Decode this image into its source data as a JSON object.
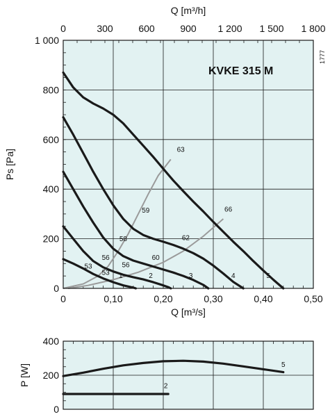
{
  "chart_data": [
    {
      "type": "line",
      "title": "KVKE 315 M",
      "code": "1777",
      "xlabel": "Q [m³/s]",
      "x2label": "Q [m³/h]",
      "ylabel": "Ps [Pa]",
      "xlim": [
        0,
        0.5
      ],
      "x2lim": [
        0,
        1800
      ],
      "ylim": [
        0,
        1000
      ],
      "x_ticks": [
        "0",
        "0,10",
        "0,20",
        "0,30",
        "0,40",
        "0,50"
      ],
      "x2_ticks": [
        "0",
        "300",
        "600",
        "900",
        "1 200",
        "1 500",
        "1 800"
      ],
      "y_ticks": [
        "0",
        "200",
        "400",
        "600",
        "800",
        "1 000"
      ],
      "grid": true,
      "series": [
        {
          "name": "1",
          "points": [
            [
              0,
              118
            ],
            [
              0.02,
              100
            ],
            [
              0.04,
              80
            ],
            [
              0.06,
              58
            ],
            [
              0.08,
              40
            ],
            [
              0.1,
              25
            ],
            [
              0.12,
              12
            ],
            [
              0.14,
              3
            ],
            [
              0.145,
              0
            ]
          ]
        },
        {
          "name": "2",
          "points": [
            [
              0,
              250
            ],
            [
              0.02,
              200
            ],
            [
              0.04,
              150
            ],
            [
              0.06,
              110
            ],
            [
              0.08,
              85
            ],
            [
              0.1,
              68
            ],
            [
              0.12,
              55
            ],
            [
              0.14,
              45
            ],
            [
              0.16,
              36
            ],
            [
              0.18,
              25
            ],
            [
              0.2,
              12
            ],
            [
              0.21,
              5
            ],
            [
              0.215,
              0
            ]
          ]
        },
        {
          "name": "3",
          "points": [
            [
              0,
              470
            ],
            [
              0.02,
              400
            ],
            [
              0.04,
              330
            ],
            [
              0.06,
              265
            ],
            [
              0.08,
              205
            ],
            [
              0.1,
              160
            ],
            [
              0.12,
              130
            ],
            [
              0.14,
              112
            ],
            [
              0.16,
              100
            ],
            [
              0.18,
              88
            ],
            [
              0.2,
              76
            ],
            [
              0.22,
              64
            ],
            [
              0.24,
              50
            ],
            [
              0.26,
              34
            ],
            [
              0.28,
              14
            ],
            [
              0.29,
              0
            ]
          ]
        },
        {
          "name": "4",
          "points": [
            [
              0,
              690
            ],
            [
              0.02,
              620
            ],
            [
              0.04,
              545
            ],
            [
              0.06,
              470
            ],
            [
              0.08,
              400
            ],
            [
              0.1,
              335
            ],
            [
              0.12,
              280
            ],
            [
              0.14,
              240
            ],
            [
              0.16,
              215
            ],
            [
              0.18,
              200
            ],
            [
              0.2,
              188
            ],
            [
              0.22,
              175
            ],
            [
              0.24,
              160
            ],
            [
              0.26,
              142
            ],
            [
              0.28,
              120
            ],
            [
              0.3,
              92
            ],
            [
              0.32,
              60
            ],
            [
              0.34,
              26
            ],
            [
              0.36,
              0
            ]
          ]
        },
        {
          "name": "5",
          "points": [
            [
              0,
              870
            ],
            [
              0.02,
              810
            ],
            [
              0.04,
              770
            ],
            [
              0.06,
              745
            ],
            [
              0.08,
              725
            ],
            [
              0.1,
              700
            ],
            [
              0.12,
              665
            ],
            [
              0.14,
              620
            ],
            [
              0.16,
              575
            ],
            [
              0.18,
              530
            ],
            [
              0.2,
              482
            ],
            [
              0.22,
              435
            ],
            [
              0.24,
              392
            ],
            [
              0.26,
              350
            ],
            [
              0.28,
              310
            ],
            [
              0.3,
              268
            ],
            [
              0.32,
              228
            ],
            [
              0.34,
              188
            ],
            [
              0.36,
              150
            ],
            [
              0.38,
              110
            ],
            [
              0.4,
              72
            ],
            [
              0.42,
              35
            ],
            [
              0.44,
              0
            ]
          ]
        }
      ],
      "efficiency_lines": [
        {
          "points": [
            [
              0,
              0
            ],
            [
              0.04,
              18
            ],
            [
              0.07,
              50
            ],
            [
              0.09,
              90
            ],
            [
              0.11,
              150
            ],
            [
              0.13,
              220
            ],
            [
              0.15,
              300
            ],
            [
              0.17,
              380
            ],
            [
              0.19,
              455
            ],
            [
              0.215,
              520
            ]
          ]
        },
        {
          "points": [
            [
              0.01,
              0
            ],
            [
              0.05,
              12
            ],
            [
              0.1,
              35
            ],
            [
              0.15,
              65
            ],
            [
              0.2,
              105
            ],
            [
              0.24,
              150
            ],
            [
              0.28,
              210
            ],
            [
              0.32,
              280
            ]
          ]
        }
      ],
      "annotations": [
        {
          "text": "63",
          "x": 0.235,
          "y": 550
        },
        {
          "text": "66",
          "x": 0.33,
          "y": 310
        },
        {
          "text": "59",
          "x": 0.165,
          "y": 305
        },
        {
          "text": "62",
          "x": 0.245,
          "y": 195
        },
        {
          "text": "58",
          "x": 0.12,
          "y": 190
        },
        {
          "text": "60",
          "x": 0.185,
          "y": 115
        },
        {
          "text": "56",
          "x": 0.085,
          "y": 115
        },
        {
          "text": "56",
          "x": 0.125,
          "y": 85
        },
        {
          "text": "53",
          "x": 0.05,
          "y": 80
        },
        {
          "text": "53",
          "x": 0.085,
          "y": 55
        },
        {
          "text": "1",
          "x": 0.115,
          "y": 42
        },
        {
          "text": "2",
          "x": 0.175,
          "y": 42
        },
        {
          "text": "3",
          "x": 0.255,
          "y": 42
        },
        {
          "text": "4",
          "x": 0.34,
          "y": 42
        },
        {
          "text": "5",
          "x": 0.41,
          "y": 42
        }
      ]
    },
    {
      "type": "line",
      "ylabel": "P [W]",
      "xlim": [
        0,
        0.5
      ],
      "ylim": [
        0,
        400
      ],
      "y_ticks": [
        "0",
        "200",
        "400"
      ],
      "grid": true,
      "series": [
        {
          "name": "5",
          "points": [
            [
              0,
              195
            ],
            [
              0.04,
              215
            ],
            [
              0.08,
              238
            ],
            [
              0.12,
              258
            ],
            [
              0.16,
              272
            ],
            [
              0.2,
              282
            ],
            [
              0.24,
              285
            ],
            [
              0.28,
              280
            ],
            [
              0.32,
              268
            ],
            [
              0.36,
              252
            ],
            [
              0.4,
              235
            ],
            [
              0.44,
              218
            ]
          ]
        },
        {
          "name": "2",
          "points": [
            [
              0,
              90
            ],
            [
              0.05,
              90
            ],
            [
              0.1,
              90
            ],
            [
              0.15,
              90
            ],
            [
              0.21,
              90
            ]
          ]
        }
      ],
      "annotations": [
        {
          "text": "5",
          "x": 0.44,
          "y": 250
        },
        {
          "text": "2",
          "x": 0.205,
          "y": 125
        }
      ]
    }
  ]
}
